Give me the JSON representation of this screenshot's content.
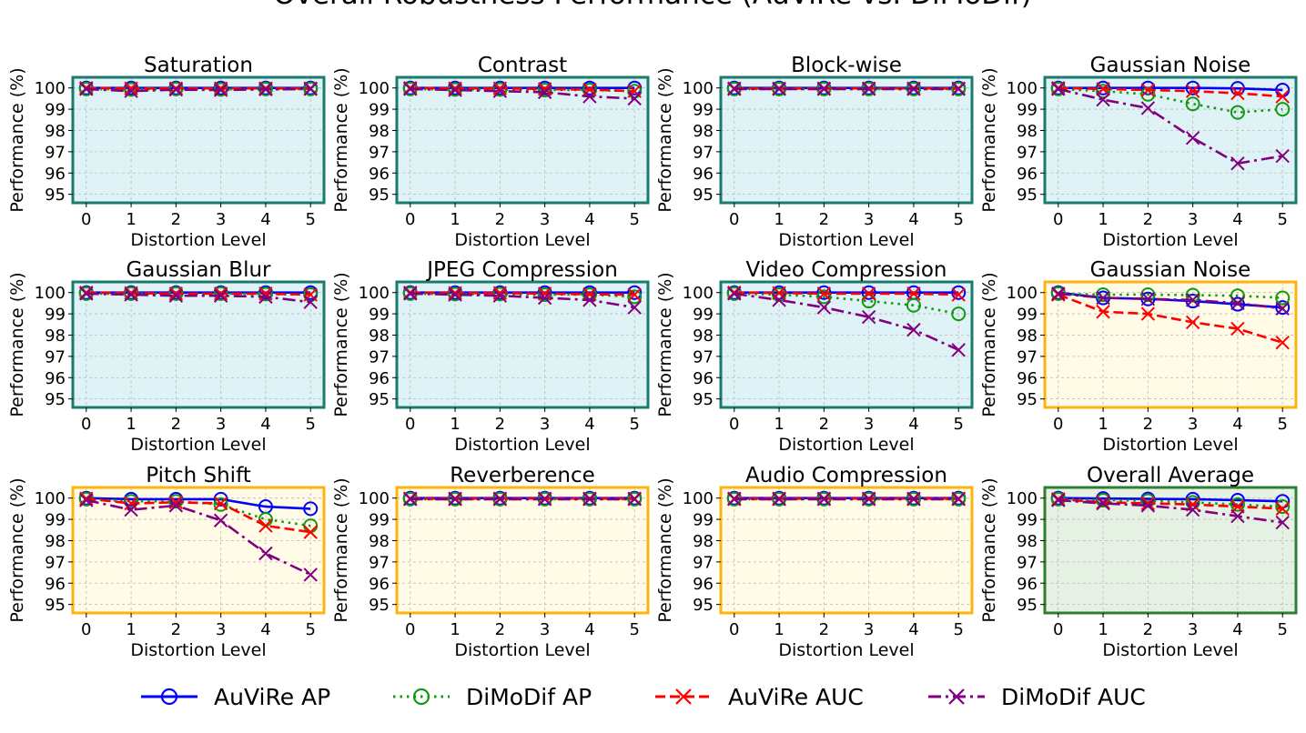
{
  "figure_title": "Overall Robustness Performance (AuViRe vs. DiMoDif)",
  "colors": {
    "video_bg": "#dff3f6",
    "video_border": "#1a7a6e",
    "audio_bg": "#fffbe6",
    "audio_border": "#ffb30f",
    "overall_bg": "#e4f1e3",
    "overall_border": "#2e7d32",
    "AuViRe AP": "#0000ff",
    "DiMoDif AP": "#119911",
    "AuViRe AUC": "#ff0000",
    "DiMoDif AUC": "#800080"
  },
  "legend": {
    "items": [
      {
        "label": "AuViRe AP",
        "marker": "circle",
        "dash": "solid"
      },
      {
        "label": "DiMoDif AP",
        "marker": "circle",
        "dash": "dotted"
      },
      {
        "label": "AuViRe AUC",
        "marker": "x",
        "dash": "dashed"
      },
      {
        "label": "DiMoDif AUC",
        "marker": "x",
        "dash": "dashdot"
      }
    ]
  },
  "chart_data": [
    {
      "type": "line",
      "title": "Saturation",
      "group": "video",
      "xlabel": "Distortion Level",
      "ylabel": "Performance (%)",
      "x": [
        0,
        1,
        2,
        3,
        4,
        5
      ],
      "xticks": [
        0,
        1,
        2,
        3,
        4,
        5
      ],
      "yticks": [
        95,
        96,
        97,
        98,
        99,
        100
      ],
      "ylim": [
        94.6,
        100.5
      ],
      "grid": true,
      "series": [
        {
          "name": "AuViRe AP",
          "values": [
            100,
            100,
            100,
            100,
            100,
            100
          ]
        },
        {
          "name": "DiMoDif AP",
          "values": [
            99.95,
            99.93,
            99.95,
            99.93,
            99.95,
            99.95
          ]
        },
        {
          "name": "AuViRe AUC",
          "values": [
            100,
            99.98,
            99.98,
            99.98,
            99.98,
            99.98
          ]
        },
        {
          "name": "DiMoDif AUC",
          "values": [
            99.95,
            99.85,
            99.92,
            99.9,
            99.93,
            99.95
          ]
        }
      ]
    },
    {
      "type": "line",
      "title": "Contrast",
      "group": "video",
      "xlabel": "Distortion Level",
      "ylabel": "Performance (%)",
      "x": [
        0,
        1,
        2,
        3,
        4,
        5
      ],
      "xticks": [
        0,
        1,
        2,
        3,
        4,
        5
      ],
      "yticks": [
        95,
        96,
        97,
        98,
        99,
        100
      ],
      "ylim": [
        94.6,
        100.5
      ],
      "grid": true,
      "series": [
        {
          "name": "AuViRe AP",
          "values": [
            100,
            100,
            100,
            100,
            100,
            100
          ]
        },
        {
          "name": "DiMoDif AP",
          "values": [
            99.95,
            99.93,
            99.93,
            99.9,
            99.9,
            99.85
          ]
        },
        {
          "name": "AuViRe AUC",
          "values": [
            100,
            99.98,
            99.98,
            99.95,
            99.92,
            99.85
          ]
        },
        {
          "name": "DiMoDif AUC",
          "values": [
            99.95,
            99.9,
            99.85,
            99.8,
            99.6,
            99.5
          ]
        }
      ]
    },
    {
      "type": "line",
      "title": "Block-wise",
      "group": "video",
      "xlabel": "Distortion Level",
      "ylabel": "Performance (%)",
      "x": [
        0,
        1,
        2,
        3,
        4,
        5
      ],
      "xticks": [
        0,
        1,
        2,
        3,
        4,
        5
      ],
      "yticks": [
        95,
        96,
        97,
        98,
        99,
        100
      ],
      "ylim": [
        94.6,
        100.5
      ],
      "grid": true,
      "series": [
        {
          "name": "AuViRe AP",
          "values": [
            100,
            100,
            100,
            100,
            100,
            100
          ]
        },
        {
          "name": "DiMoDif AP",
          "values": [
            99.95,
            99.95,
            99.95,
            99.95,
            99.95,
            99.95
          ]
        },
        {
          "name": "AuViRe AUC",
          "values": [
            99.98,
            99.98,
            99.98,
            99.98,
            99.98,
            99.98
          ]
        },
        {
          "name": "DiMoDif AUC",
          "values": [
            99.95,
            99.95,
            99.95,
            99.95,
            99.95,
            99.95
          ]
        }
      ]
    },
    {
      "type": "line",
      "title": "Gaussian Noise",
      "group": "video",
      "xlabel": "Distortion Level",
      "ylabel": "Performance (%)",
      "x": [
        0,
        1,
        2,
        3,
        4,
        5
      ],
      "xticks": [
        0,
        1,
        2,
        3,
        4,
        5
      ],
      "yticks": [
        95,
        96,
        97,
        98,
        99,
        100
      ],
      "ylim": [
        94.6,
        100.5
      ],
      "grid": true,
      "series": [
        {
          "name": "AuViRe AP",
          "values": [
            100,
            100,
            100,
            100,
            99.98,
            99.9
          ]
        },
        {
          "name": "DiMoDif AP",
          "values": [
            99.95,
            99.85,
            99.7,
            99.25,
            98.85,
            99.0
          ]
        },
        {
          "name": "AuViRe AUC",
          "values": [
            100,
            99.95,
            99.9,
            99.85,
            99.75,
            99.6
          ]
        },
        {
          "name": "DiMoDif AUC",
          "values": [
            99.95,
            99.45,
            99.05,
            97.65,
            96.45,
            96.8
          ]
        }
      ]
    },
    {
      "type": "line",
      "title": "Gaussian Blur",
      "group": "video",
      "xlabel": "Distortion Level",
      "ylabel": "Performance (%)",
      "x": [
        0,
        1,
        2,
        3,
        4,
        5
      ],
      "xticks": [
        0,
        1,
        2,
        3,
        4,
        5
      ],
      "yticks": [
        95,
        96,
        97,
        98,
        99,
        100
      ],
      "ylim": [
        94.6,
        100.5
      ],
      "grid": true,
      "series": [
        {
          "name": "AuViRe AP",
          "values": [
            100,
            100,
            100,
            100,
            100,
            100
          ]
        },
        {
          "name": "DiMoDif AP",
          "values": [
            99.95,
            99.95,
            99.95,
            99.95,
            99.93,
            99.9
          ]
        },
        {
          "name": "AuViRe AUC",
          "values": [
            100,
            99.98,
            99.95,
            99.95,
            99.95,
            99.9
          ]
        },
        {
          "name": "DiMoDif AUC",
          "values": [
            99.95,
            99.9,
            99.85,
            99.85,
            99.8,
            99.55
          ]
        }
      ]
    },
    {
      "type": "line",
      "title": "JPEG Compression",
      "group": "video",
      "xlabel": "Distortion Level",
      "ylabel": "Performance (%)",
      "x": [
        0,
        1,
        2,
        3,
        4,
        5
      ],
      "xticks": [
        0,
        1,
        2,
        3,
        4,
        5
      ],
      "yticks": [
        95,
        96,
        97,
        98,
        99,
        100
      ],
      "ylim": [
        94.6,
        100.5
      ],
      "grid": true,
      "series": [
        {
          "name": "AuViRe AP",
          "values": [
            100,
            100,
            100,
            100,
            100,
            100
          ]
        },
        {
          "name": "DiMoDif AP",
          "values": [
            99.95,
            99.93,
            99.93,
            99.9,
            99.9,
            99.8
          ]
        },
        {
          "name": "AuViRe AUC",
          "values": [
            100,
            99.98,
            99.98,
            99.95,
            99.92,
            99.9
          ]
        },
        {
          "name": "DiMoDif AUC",
          "values": [
            99.95,
            99.9,
            99.85,
            99.75,
            99.65,
            99.3
          ]
        }
      ]
    },
    {
      "type": "line",
      "title": "Video Compression",
      "group": "video",
      "xlabel": "Distortion Level",
      "ylabel": "Performance (%)",
      "x": [
        0,
        1,
        2,
        3,
        4,
        5
      ],
      "xticks": [
        0,
        1,
        2,
        3,
        4,
        5
      ],
      "yticks": [
        95,
        96,
        97,
        98,
        99,
        100
      ],
      "ylim": [
        94.6,
        100.5
      ],
      "grid": true,
      "series": [
        {
          "name": "AuViRe AP",
          "values": [
            100,
            100,
            100,
            100,
            100,
            100
          ]
        },
        {
          "name": "DiMoDif AP",
          "values": [
            99.95,
            99.9,
            99.8,
            99.6,
            99.4,
            99.0
          ]
        },
        {
          "name": "AuViRe AUC",
          "values": [
            100,
            99.98,
            99.95,
            99.95,
            99.95,
            99.9
          ]
        },
        {
          "name": "DiMoDif AUC",
          "values": [
            99.95,
            99.65,
            99.3,
            98.85,
            98.25,
            97.3
          ]
        }
      ]
    },
    {
      "type": "line",
      "title": "Gaussian Noise",
      "group": "audio",
      "xlabel": "Distortion Level",
      "ylabel": "Performance (%)",
      "x": [
        0,
        1,
        2,
        3,
        4,
        5
      ],
      "xticks": [
        0,
        1,
        2,
        3,
        4,
        5
      ],
      "yticks": [
        95,
        96,
        97,
        98,
        99,
        100
      ],
      "ylim": [
        94.6,
        100.5
      ],
      "grid": true,
      "series": [
        {
          "name": "AuViRe AP",
          "values": [
            100,
            99.75,
            99.7,
            99.6,
            99.45,
            99.3
          ]
        },
        {
          "name": "DiMoDif AP",
          "values": [
            99.95,
            99.9,
            99.9,
            99.88,
            99.85,
            99.75
          ]
        },
        {
          "name": "AuViRe AUC",
          "values": [
            99.9,
            99.1,
            99.0,
            98.6,
            98.3,
            97.65
          ]
        },
        {
          "name": "DiMoDif AUC",
          "values": [
            99.95,
            99.75,
            99.7,
            99.65,
            99.5,
            99.25
          ]
        }
      ]
    },
    {
      "type": "line",
      "title": "Pitch Shift",
      "group": "audio",
      "xlabel": "Distortion Level",
      "ylabel": "Performance (%)",
      "x": [
        0,
        1,
        2,
        3,
        4,
        5
      ],
      "xticks": [
        0,
        1,
        2,
        3,
        4,
        5
      ],
      "yticks": [
        95,
        96,
        97,
        98,
        99,
        100
      ],
      "ylim": [
        94.6,
        100.5
      ],
      "grid": true,
      "series": [
        {
          "name": "AuViRe AP",
          "values": [
            100,
            99.95,
            99.95,
            99.95,
            99.6,
            99.5
          ]
        },
        {
          "name": "DiMoDif AP",
          "values": [
            99.95,
            99.85,
            99.85,
            99.7,
            99.0,
            98.7
          ]
        },
        {
          "name": "AuViRe AUC",
          "values": [
            99.98,
            99.75,
            99.8,
            99.75,
            98.7,
            98.4
          ]
        },
        {
          "name": "DiMoDif AUC",
          "values": [
            99.9,
            99.45,
            99.65,
            98.95,
            97.4,
            96.4
          ]
        }
      ]
    },
    {
      "type": "line",
      "title": "Reverberence",
      "group": "audio",
      "xlabel": "Distortion Level",
      "ylabel": "Performance (%)",
      "x": [
        0,
        1,
        2,
        3,
        4,
        5
      ],
      "xticks": [
        0,
        1,
        2,
        3,
        4,
        5
      ],
      "yticks": [
        95,
        96,
        97,
        98,
        99,
        100
      ],
      "ylim": [
        94.6,
        100.5
      ],
      "grid": true,
      "series": [
        {
          "name": "AuViRe AP",
          "values": [
            100,
            100,
            100,
            100,
            100,
            100
          ]
        },
        {
          "name": "DiMoDif AP",
          "values": [
            99.95,
            99.95,
            99.95,
            99.95,
            99.95,
            99.95
          ]
        },
        {
          "name": "AuViRe AUC",
          "values": [
            99.98,
            99.98,
            99.98,
            99.98,
            99.98,
            99.98
          ]
        },
        {
          "name": "DiMoDif AUC",
          "values": [
            99.95,
            99.95,
            99.95,
            99.95,
            99.95,
            99.95
          ]
        }
      ]
    },
    {
      "type": "line",
      "title": "Audio Compression",
      "group": "audio",
      "xlabel": "Distortion Level",
      "ylabel": "Performance (%)",
      "x": [
        0,
        1,
        2,
        3,
        4,
        5
      ],
      "xticks": [
        0,
        1,
        2,
        3,
        4,
        5
      ],
      "yticks": [
        95,
        96,
        97,
        98,
        99,
        100
      ],
      "ylim": [
        94.6,
        100.5
      ],
      "grid": true,
      "series": [
        {
          "name": "AuViRe AP",
          "values": [
            100,
            100,
            100,
            100,
            100,
            100
          ]
        },
        {
          "name": "DiMoDif AP",
          "values": [
            99.95,
            99.95,
            99.95,
            99.95,
            99.95,
            99.95
          ]
        },
        {
          "name": "AuViRe AUC",
          "values": [
            99.98,
            99.98,
            99.98,
            99.98,
            99.98,
            99.98
          ]
        },
        {
          "name": "DiMoDif AUC",
          "values": [
            99.95,
            99.95,
            99.95,
            99.95,
            99.95,
            99.95
          ]
        }
      ]
    },
    {
      "type": "line",
      "title": "Overall Average",
      "group": "overall",
      "xlabel": "Distortion Level",
      "ylabel": "Performance (%)",
      "x": [
        0,
        1,
        2,
        3,
        4,
        5
      ],
      "xticks": [
        0,
        1,
        2,
        3,
        4,
        5
      ],
      "yticks": [
        95,
        96,
        97,
        98,
        99,
        100
      ],
      "ylim": [
        94.6,
        100.5
      ],
      "grid": true,
      "series": [
        {
          "name": "AuViRe AP",
          "values": [
            100,
            99.98,
            99.96,
            99.95,
            99.9,
            99.85
          ]
        },
        {
          "name": "DiMoDif AP",
          "values": [
            99.95,
            99.9,
            99.88,
            99.8,
            99.7,
            99.6
          ]
        },
        {
          "name": "AuViRe AUC",
          "values": [
            99.95,
            99.8,
            99.75,
            99.7,
            99.6,
            99.5
          ]
        },
        {
          "name": "DiMoDif AUC",
          "values": [
            99.9,
            99.75,
            99.65,
            99.45,
            99.15,
            98.85
          ]
        }
      ]
    }
  ]
}
